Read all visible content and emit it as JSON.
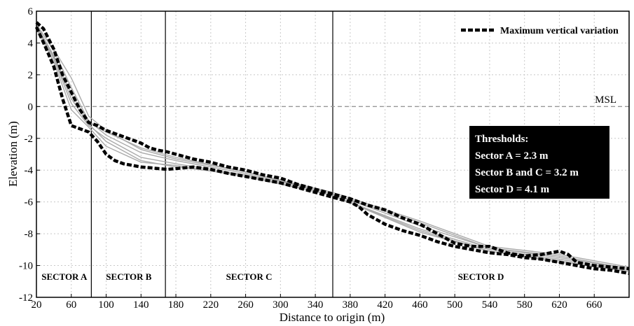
{
  "chart_data": {
    "type": "line",
    "xlabel": "Distance to origin (m)",
    "ylabel": "Elevation (m)",
    "xlim": [
      20,
      700
    ],
    "ylim": [
      -12,
      6
    ],
    "xticks": [
      20,
      60,
      100,
      140,
      180,
      220,
      260,
      300,
      340,
      380,
      420,
      460,
      500,
      540,
      580,
      620,
      660
    ],
    "yticks": [
      6,
      4,
      2,
      0,
      -2,
      -4,
      -6,
      -8,
      -10,
      -12
    ],
    "grid": true,
    "legend": {
      "position": "top-right",
      "label": "Maximum vertical variation"
    },
    "reference_line": {
      "label": "MSL",
      "y": 0
    },
    "sector_boundaries": [
      83,
      168,
      360
    ],
    "sectors": [
      {
        "label": "SECTOR A",
        "x": 52
      },
      {
        "label": "SECTOR B",
        "x": 126
      },
      {
        "label": "SECTOR C",
        "x": 264
      },
      {
        "label": "SECTOR D",
        "x": 530
      }
    ],
    "thresholds": {
      "title": "Thresholds:",
      "lines": [
        "Sector A = 2.3 m",
        "Sector B and C = 3.2 m",
        "Sector D = 4.1 m"
      ]
    },
    "envelope_upper": {
      "name": "Maximum vertical variation",
      "x": [
        20,
        28,
        40,
        50,
        60,
        70,
        80,
        90,
        100,
        110,
        120,
        130,
        140,
        150,
        160,
        170,
        180,
        200,
        220,
        240,
        260,
        280,
        300,
        320,
        340,
        360,
        380,
        400,
        420,
        440,
        460,
        480,
        500,
        520,
        540,
        560,
        580,
        600,
        620,
        630,
        640,
        660,
        680,
        700
      ],
      "y": [
        5.3,
        4.9,
        3.6,
        2.0,
        0.9,
        -0.2,
        -1.0,
        -1.2,
        -1.5,
        -1.7,
        -1.9,
        -2.1,
        -2.3,
        -2.6,
        -2.75,
        -2.85,
        -3.0,
        -3.3,
        -3.5,
        -3.8,
        -4.0,
        -4.3,
        -4.5,
        -4.9,
        -5.2,
        -5.5,
        -5.8,
        -6.2,
        -6.5,
        -7.0,
        -7.4,
        -8.0,
        -8.6,
        -8.8,
        -8.8,
        -9.2,
        -9.4,
        -9.3,
        -9.1,
        -9.3,
        -9.8,
        -10.0,
        -10.1,
        -10.2
      ]
    },
    "envelope_lower": {
      "x": [
        20,
        30,
        40,
        50,
        60,
        70,
        80,
        90,
        100,
        110,
        120,
        130,
        140,
        150,
        160,
        170,
        180,
        200,
        220,
        240,
        260,
        280,
        300,
        320,
        340,
        360,
        380,
        390,
        400,
        420,
        440,
        460,
        480,
        500,
        520,
        540,
        560,
        580,
        600,
        620,
        640,
        660,
        680,
        700
      ],
      "y": [
        5.0,
        3.8,
        2.5,
        0.5,
        -1.2,
        -1.4,
        -1.6,
        -2.2,
        -3.0,
        -3.4,
        -3.6,
        -3.7,
        -3.8,
        -3.85,
        -3.9,
        -3.95,
        -3.9,
        -3.8,
        -3.95,
        -4.2,
        -4.4,
        -4.6,
        -4.8,
        -5.1,
        -5.4,
        -5.7,
        -6.0,
        -6.3,
        -6.8,
        -7.4,
        -7.8,
        -8.1,
        -8.5,
        -8.8,
        -9.0,
        -9.2,
        -9.3,
        -9.5,
        -9.6,
        -9.8,
        -10.0,
        -10.2,
        -10.3,
        -10.5
      ]
    },
    "profiles": [
      {
        "x": [
          20,
          40,
          60,
          80,
          100,
          140,
          180,
          260,
          360,
          460,
          540,
          620,
          700
        ],
        "y": [
          5.1,
          3.2,
          0.8,
          -1.0,
          -1.6,
          -2.6,
          -3.2,
          -4.1,
          -5.5,
          -7.3,
          -8.9,
          -9.4,
          -10.2
        ]
      },
      {
        "x": [
          20,
          40,
          60,
          80,
          100,
          140,
          180,
          260,
          360,
          460,
          540,
          620,
          700
        ],
        "y": [
          5.0,
          3.0,
          0.2,
          -1.2,
          -2.0,
          -3.2,
          -3.6,
          -4.3,
          -5.6,
          -7.7,
          -9.0,
          -9.6,
          -10.3
        ]
      },
      {
        "x": [
          20,
          40,
          60,
          80,
          100,
          140,
          180,
          260,
          360,
          460,
          540,
          620,
          700
        ],
        "y": [
          5.2,
          3.5,
          1.2,
          -0.9,
          -1.8,
          -2.9,
          -3.4,
          -4.2,
          -5.5,
          -7.5,
          -8.9,
          -9.5,
          -10.2
        ]
      },
      {
        "x": [
          20,
          40,
          60,
          80,
          100,
          140,
          180,
          260,
          360,
          460,
          540,
          620,
          700
        ],
        "y": [
          4.9,
          2.8,
          -0.2,
          -1.3,
          -2.5,
          -3.5,
          -3.7,
          -4.4,
          -5.6,
          -7.9,
          -9.1,
          -9.7,
          -10.4
        ]
      },
      {
        "x": [
          20,
          40,
          60,
          80,
          100,
          140,
          180,
          260,
          360,
          460,
          540,
          620,
          700
        ],
        "y": [
          5.1,
          3.6,
          1.8,
          -0.6,
          -1.5,
          -2.7,
          -3.3,
          -4.1,
          -5.4,
          -7.2,
          -8.8,
          -9.3,
          -10.1
        ]
      },
      {
        "x": [
          20,
          40,
          60,
          80,
          100,
          140,
          180,
          260,
          360,
          460,
          540,
          620,
          700
        ],
        "y": [
          5.0,
          3.1,
          0.5,
          -1.1,
          -2.2,
          -3.4,
          -3.8,
          -4.3,
          -5.6,
          -7.8,
          -9.1,
          -9.8,
          -10.3
        ]
      }
    ]
  }
}
